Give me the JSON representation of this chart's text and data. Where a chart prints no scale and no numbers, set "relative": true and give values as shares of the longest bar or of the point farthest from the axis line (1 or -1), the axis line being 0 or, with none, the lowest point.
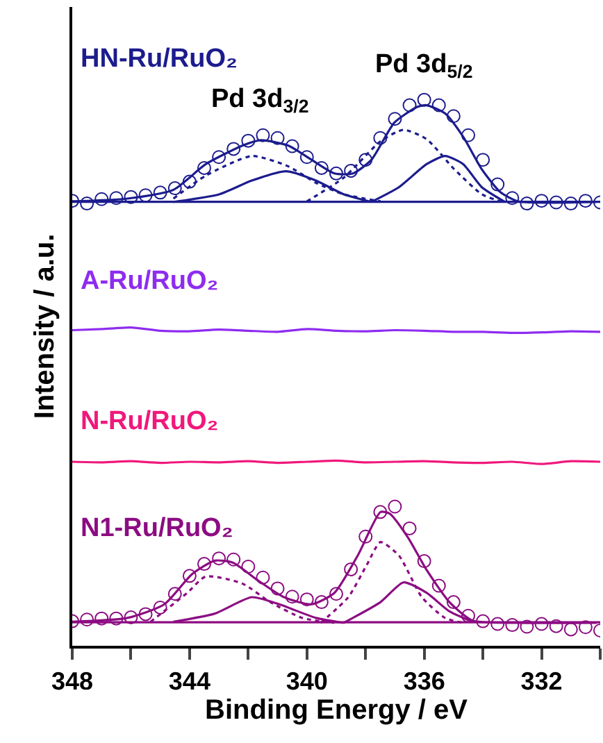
{
  "chart_data": {
    "type": "line",
    "relative": true,
    "xlabel": "Binding Energy / eV",
    "ylabel": "Intensity / a.u.",
    "xlim": [
      348,
      330
    ],
    "xticks": [
      348,
      {
        "value": 346,
        "label": null
      },
      344,
      {
        "value": 342,
        "label": null
      },
      340,
      {
        "value": 338,
        "label": null
      },
      336,
      {
        "value": 334,
        "label": null
      },
      332,
      {
        "value": 330,
        "label": null
      }
    ],
    "annotations": [
      {
        "text": "Pd 3d$_{3/2}$",
        "x": 341.6,
        "y": 0.926
      },
      {
        "text": "Pd 3d$_{5/2}$",
        "x": 336.0,
        "y": 0.99
      }
    ],
    "series": [
      {
        "name": "HN-Ru/RuO₂",
        "color": "#1c1c8e",
        "line_style": "solid",
        "x": [
          348,
          346.12,
          344.55,
          343.45,
          342.2,
          341.57,
          340.63,
          339.84,
          339.06,
          338.43,
          337.8,
          337.02,
          336.24,
          335.92,
          335.29,
          334.67,
          334.04,
          333.41,
          332.79,
          330.12
        ],
        "values": [
          0.814,
          0.819,
          0.835,
          0.882,
          0.916,
          0.926,
          0.916,
          0.89,
          0.865,
          0.865,
          0.89,
          0.958,
          0.987,
          0.99,
          0.975,
          0.932,
          0.873,
          0.831,
          0.814,
          0.813
        ]
      },
      {
        "type": "scatter",
        "marker": "circle",
        "color": "#1c1c8e",
        "x": [
          348,
          347.5,
          347,
          346.5,
          346,
          345.5,
          345,
          344.5,
          344,
          343.5,
          343,
          342.5,
          342,
          341.5,
          341,
          340.5,
          340,
          339.5,
          339,
          338.5,
          338,
          337.5,
          337,
          336.5,
          336,
          335.5,
          335,
          334.5,
          334,
          333.5,
          333,
          332.5,
          332,
          331.5,
          331,
          330.5,
          330
        ],
        "values": [
          0.815,
          0.81,
          0.818,
          0.82,
          0.822,
          0.825,
          0.83,
          0.838,
          0.85,
          0.875,
          0.895,
          0.91,
          0.925,
          0.935,
          0.93,
          0.915,
          0.895,
          0.875,
          0.865,
          0.87,
          0.89,
          0.93,
          0.965,
          0.99,
          1.0,
          0.99,
          0.97,
          0.935,
          0.89,
          0.845,
          0.82,
          0.81,
          0.815,
          0.812,
          0.81,
          0.815,
          0.812
        ]
      },
      {
        "type": "line",
        "color": "#1c1c8e",
        "line_style": "dotted",
        "x": [
          344.55,
          343.45,
          341.88,
          340.63,
          339.69,
          338.75,
          337.49
        ],
        "values": [
          0.819,
          0.861,
          0.897,
          0.878,
          0.848,
          0.827,
          0.814
        ]
      },
      {
        "type": "line",
        "color": "#1c1c8e",
        "line_style": "dotted",
        "x": [
          340.0,
          338.75,
          337.49,
          336.71,
          335.92,
          334.98,
          334.04,
          333.41
        ],
        "values": [
          0.814,
          0.857,
          0.924,
          0.945,
          0.928,
          0.873,
          0.827,
          0.814
        ]
      },
      {
        "type": "line",
        "color": "#1c1c8e",
        "line_style": "solid",
        "x": [
          344.55,
          342.98,
          341.88,
          340.71,
          339.69,
          338.75,
          337.8
        ],
        "values": [
          0.813,
          0.827,
          0.852,
          0.869,
          0.852,
          0.827,
          0.813
        ]
      },
      {
        "type": "line",
        "color": "#1c1c8e",
        "line_style": "solid",
        "x": [
          337.8,
          336.86,
          335.92,
          335.29,
          334.67,
          334.04,
          333.25
        ],
        "values": [
          0.813,
          0.84,
          0.882,
          0.897,
          0.882,
          0.84,
          0.813
        ]
      },
      {
        "type": "line",
        "color": "#1c1c8e",
        "line_style": "solid",
        "x": [
          348,
          330
        ],
        "values": [
          0.813,
          0.813
        ]
      },
      {
        "name": "A-Ru/RuO₂",
        "color": "#8e2cf0",
        "line_style": "solid",
        "x": [
          348,
          347,
          346,
          345,
          344,
          343,
          342,
          341,
          340,
          339,
          338,
          337,
          336,
          335,
          334,
          333,
          332,
          331,
          330
        ],
        "values": [
          0.578,
          0.58,
          0.583,
          0.577,
          0.576,
          0.579,
          0.577,
          0.575,
          0.58,
          0.577,
          0.576,
          0.578,
          0.577,
          0.575,
          0.575,
          0.573,
          0.574,
          0.576,
          0.575
        ]
      },
      {
        "name": "N-Ru/RuO₂",
        "color": "#f0187c",
        "line_style": "solid",
        "x": [
          348,
          347,
          346,
          345,
          344,
          343,
          342,
          341,
          340,
          339,
          338,
          337,
          336,
          335,
          334,
          333,
          332,
          331,
          330
        ],
        "values": [
          0.337,
          0.336,
          0.338,
          0.335,
          0.337,
          0.336,
          0.338,
          0.335,
          0.337,
          0.339,
          0.336,
          0.337,
          0.338,
          0.336,
          0.335,
          0.337,
          0.333,
          0.338,
          0.337
        ]
      },
      {
        "name": "N1-Ru/RuO₂",
        "color": "#8c0c82",
        "line_style": "solid",
        "x": [
          348,
          346.12,
          344.86,
          343.92,
          343.14,
          342.51,
          341.73,
          340.78,
          339.84,
          339.06,
          338.27,
          337.49,
          337.18,
          336.55,
          335.92,
          335.14,
          334.35,
          332.79,
          330.12
        ],
        "values": [
          0.044,
          0.051,
          0.076,
          0.131,
          0.156,
          0.152,
          0.122,
          0.089,
          0.076,
          0.097,
          0.165,
          0.245,
          0.242,
          0.198,
          0.139,
          0.08,
          0.046,
          0.042,
          0.042
        ]
      },
      {
        "type": "scatter",
        "marker": "circle",
        "color": "#8c0c82",
        "x": [
          348,
          347.5,
          347,
          346.5,
          346,
          345.5,
          345,
          344.5,
          344,
          343.5,
          343,
          342.5,
          342,
          341.5,
          341,
          340.5,
          340,
          339.5,
          339,
          338.5,
          338,
          337.5,
          337,
          336.5,
          336,
          335.5,
          335,
          334.5,
          334,
          333.5,
          333,
          332.5,
          332,
          331.5,
          331,
          330.5,
          330
        ],
        "values": [
          0.045,
          0.048,
          0.05,
          0.05,
          0.052,
          0.058,
          0.07,
          0.095,
          0.128,
          0.15,
          0.16,
          0.158,
          0.145,
          0.125,
          0.105,
          0.09,
          0.085,
          0.08,
          0.095,
          0.14,
          0.2,
          0.245,
          0.255,
          0.215,
          0.155,
          0.11,
          0.08,
          0.055,
          0.045,
          0.04,
          0.038,
          0.035,
          0.04,
          0.036,
          0.03,
          0.034,
          0.028
        ]
      },
      {
        "type": "line",
        "color": "#8c0c82",
        "line_style": "dotted",
        "x": [
          345.33,
          344.08,
          343.45,
          342.2,
          341.25,
          340.16,
          339.06
        ],
        "values": [
          0.044,
          0.097,
          0.127,
          0.114,
          0.08,
          0.051,
          0.042
        ]
      },
      {
        "type": "line",
        "color": "#8c0c82",
        "line_style": "dotted",
        "x": [
          339.53,
          338.59,
          337.96,
          337.49,
          336.86,
          336.08,
          335.29,
          334.67
        ],
        "values": [
          0.042,
          0.089,
          0.148,
          0.19,
          0.165,
          0.089,
          0.051,
          0.042
        ]
      },
      {
        "type": "line",
        "color": "#8c0c82",
        "line_style": "solid",
        "x": [
          344.55,
          343.14,
          341.88,
          340.94,
          339.69,
          338.75
        ],
        "values": [
          0.044,
          0.059,
          0.089,
          0.076,
          0.051,
          0.042
        ]
      },
      {
        "type": "line",
        "color": "#8c0c82",
        "line_style": "solid",
        "x": [
          338.75,
          337.49,
          336.71,
          335.92,
          335.14,
          334.35
        ],
        "values": [
          0.042,
          0.08,
          0.116,
          0.097,
          0.063,
          0.044
        ]
      },
      {
        "type": "line",
        "color": "#8c0c82",
        "line_style": "solid",
        "x": [
          348,
          330
        ],
        "values": [
          0.043,
          0.043
        ]
      }
    ]
  }
}
